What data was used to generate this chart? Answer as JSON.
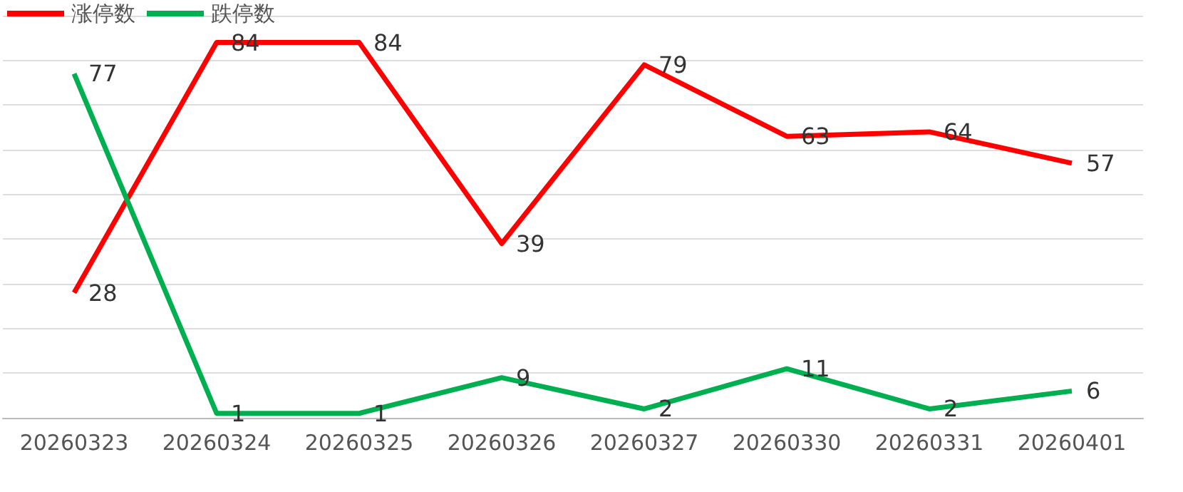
{
  "chart_data": {
    "type": "line",
    "categories": [
      "20260323",
      "20260324",
      "20260325",
      "20260326",
      "20260327",
      "20260330",
      "20260331",
      "20260401"
    ],
    "series": [
      {
        "name": "涨停数",
        "color": "#ff0000",
        "values": [
          28,
          84,
          84,
          39,
          79,
          63,
          64,
          57
        ]
      },
      {
        "name": "跌停数",
        "color": "#00b050",
        "values": [
          77,
          1,
          1,
          9,
          2,
          11,
          2,
          6
        ]
      }
    ],
    "ylim": [
      0,
      90
    ],
    "yticks": [
      0,
      10,
      20,
      30,
      40,
      50,
      60,
      70,
      80,
      90
    ],
    "tick_labels": "x",
    "grid": "y",
    "legend": "top left",
    "data_labels": true,
    "marker": "none",
    "line_style": "solid"
  }
}
